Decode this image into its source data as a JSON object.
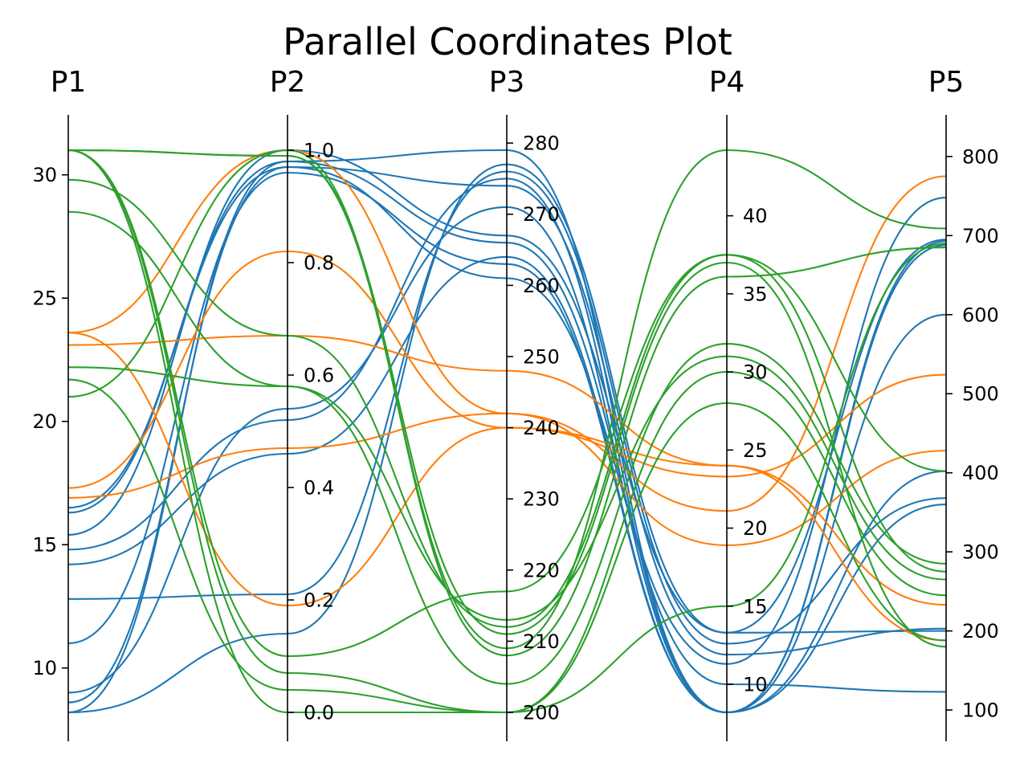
{
  "chart_data": {
    "type": "parallel_coordinates",
    "title": "Parallel Coordinates Plot",
    "curve": "smooth",
    "grid": false,
    "legend": "none",
    "axes": [
      {
        "name": "P1",
        "range": [
          8.2,
          31.0
        ],
        "ticks": [
          10,
          15,
          20,
          25,
          30
        ],
        "tick_side": "left"
      },
      {
        "name": "P2",
        "range": [
          0.0,
          1.0
        ],
        "ticks": [
          0.0,
          0.2,
          0.4,
          0.6,
          0.8,
          1.0
        ],
        "tick_side": "right"
      },
      {
        "name": "P3",
        "range": [
          200,
          279.0
        ],
        "ticks": [
          200,
          210,
          220,
          230,
          240,
          250,
          260,
          270,
          280
        ],
        "tick_side": "right"
      },
      {
        "name": "P4",
        "range": [
          8.2,
          44.2
        ],
        "ticks": [
          10,
          15,
          20,
          25,
          30,
          35,
          40
        ],
        "tick_side": "right"
      },
      {
        "name": "P5",
        "range": [
          97.0,
          808.0
        ],
        "ticks": [
          100,
          200,
          300,
          400,
          500,
          600,
          700,
          800
        ],
        "tick_side": "right"
      }
    ],
    "colors": {
      "0": "#1f77b4",
      "1": "#ff7f0e",
      "2": "#2ca02c"
    },
    "series": [
      {
        "group": 0,
        "values": [
          16.3,
          0.98,
          266.0,
          10.0,
          123
        ]
      },
      {
        "group": 0,
        "values": [
          16.5,
          0.97,
          261.0,
          11.3,
          748
        ]
      },
      {
        "group": 0,
        "values": [
          15.4,
          1.0,
          267.0,
          13.3,
          695
        ]
      },
      {
        "group": 0,
        "values": [
          14.8,
          0.52,
          275.0,
          8.2,
          402
        ]
      },
      {
        "group": 0,
        "values": [
          14.2,
          0.46,
          264.0,
          8.2,
          360
        ]
      },
      {
        "group": 0,
        "values": [
          12.8,
          0.21,
          276.0,
          12.6,
          368
        ]
      },
      {
        "group": 0,
        "values": [
          11.0,
          0.96,
          263.0,
          8.2,
          600
        ]
      },
      {
        "group": 0,
        "values": [
          9.0,
          0.54,
          271.0,
          8.2,
          693
        ]
      },
      {
        "group": 0,
        "values": [
          8.6,
          0.97,
          274.0,
          11.9,
          203
        ]
      },
      {
        "group": 0,
        "values": [
          8.2,
          0.14,
          277.0,
          13.3,
          200
        ]
      },
      {
        "group": 0,
        "values": [
          8.2,
          0.98,
          279.0,
          8.2,
          688
        ]
      },
      {
        "group": 1,
        "values": [
          23.6,
          1.0,
          242.0,
          21.1,
          775
        ]
      },
      {
        "group": 1,
        "values": [
          23.1,
          0.67,
          248.0,
          24.0,
          233
        ]
      },
      {
        "group": 1,
        "values": [
          17.3,
          0.82,
          240.0,
          23.3,
          524
        ]
      },
      {
        "group": 1,
        "values": [
          16.9,
          0.47,
          242.0,
          18.9,
          428
        ]
      },
      {
        "group": 1,
        "values": [
          23.6,
          0.19,
          240.0,
          24.0,
          188
        ]
      },
      {
        "group": 2,
        "values": [
          31.0,
          0.99,
          209.0,
          44.2,
          709
        ]
      },
      {
        "group": 2,
        "values": [
          29.8,
          0.67,
          212.0,
          37.5,
          275
        ]
      },
      {
        "group": 2,
        "values": [
          28.5,
          0.58,
          204.0,
          31.8,
          285
        ]
      },
      {
        "group": 2,
        "values": [
          22.2,
          0.58,
          213.0,
          31.0,
          265
        ]
      },
      {
        "group": 2,
        "values": [
          21.7,
          0.04,
          200.0,
          30.0,
          245
        ]
      },
      {
        "group": 2,
        "values": [
          21.0,
          1.0,
          208.0,
          36.1,
          685
        ]
      },
      {
        "group": 2,
        "values": [
          31.0,
          0.1,
          217.0,
          37.5,
          402
        ]
      },
      {
        "group": 2,
        "values": [
          31.0,
          0.07,
          200.0,
          28.0,
          188
        ]
      },
      {
        "group": 2,
        "values": [
          31.0,
          0.0,
          200.0,
          15.0,
          690
        ]
      },
      {
        "group": 2,
        "values": [
          31.0,
          0.99,
          211.0,
          37.0,
          180
        ]
      }
    ]
  }
}
